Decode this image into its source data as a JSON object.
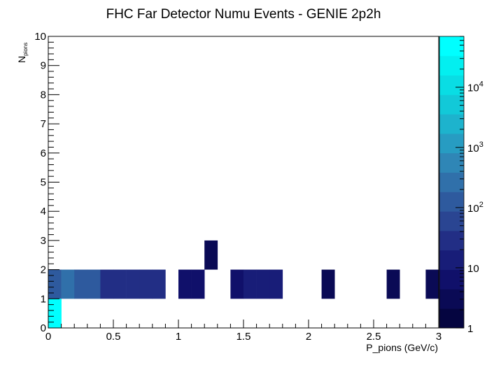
{
  "chart_data": {
    "type": "heatmap",
    "title": "FHC Far Detector Numu Events - GENIE 2p2h",
    "xlabel": "P_pions (GeV/c)",
    "ylabel": {
      "main": "N",
      "sub": "pions"
    },
    "xlim": [
      0,
      3
    ],
    "ylim": [
      0,
      10
    ],
    "x_ticks": [
      "0",
      "0.5",
      "1",
      "1.5",
      "2",
      "2.5",
      "3"
    ],
    "y_ticks": [
      "0",
      "1",
      "2",
      "3",
      "4",
      "5",
      "6",
      "7",
      "8",
      "9",
      "10"
    ],
    "x_bin_width": 0.1,
    "y_bin_width": 1,
    "grid": false,
    "colorbar": {
      "scale": "log",
      "range": [
        1,
        70000
      ],
      "tick_labels": [
        {
          "value": 1,
          "base": "1",
          "exp": ""
        },
        {
          "value": 10,
          "base": "10",
          "exp": ""
        },
        {
          "value": 100,
          "base": "10",
          "exp": "2"
        },
        {
          "value": 1000,
          "base": "10",
          "exp": "3"
        },
        {
          "value": 10000,
          "base": "10",
          "exp": "4"
        }
      ],
      "palette": [
        "#050540",
        "#0a0a55",
        "#10106a",
        "#181d78",
        "#222e85",
        "#2a4592",
        "#2e5a9e",
        "#3070aa",
        "#2f86b6",
        "#279cc2",
        "#1db3cd",
        "#12c9d8",
        "#09dde4",
        "#03eff0",
        "#00ffff"
      ]
    },
    "cells": [
      {
        "x": 0.0,
        "y": 0,
        "value": 60000
      },
      {
        "x": 0.0,
        "y": 1,
        "value": 120
      },
      {
        "x": 0.1,
        "y": 1,
        "value": 300
      },
      {
        "x": 0.2,
        "y": 1,
        "value": 180
      },
      {
        "x": 0.3,
        "y": 1,
        "value": 100
      },
      {
        "x": 0.4,
        "y": 1,
        "value": 40
      },
      {
        "x": 0.5,
        "y": 1,
        "value": 35
      },
      {
        "x": 0.6,
        "y": 1,
        "value": 35
      },
      {
        "x": 0.7,
        "y": 1,
        "value": 25
      },
      {
        "x": 0.8,
        "y": 1,
        "value": 20
      },
      {
        "x": 1.0,
        "y": 1,
        "value": 8
      },
      {
        "x": 1.1,
        "y": 1,
        "value": 5
      },
      {
        "x": 1.2,
        "y": 2,
        "value": 3
      },
      {
        "x": 1.4,
        "y": 1,
        "value": 5
      },
      {
        "x": 1.5,
        "y": 1,
        "value": 10
      },
      {
        "x": 1.6,
        "y": 1,
        "value": 10
      },
      {
        "x": 1.7,
        "y": 1,
        "value": 10
      },
      {
        "x": 2.1,
        "y": 1,
        "value": 4
      },
      {
        "x": 2.6,
        "y": 1,
        "value": 4
      },
      {
        "x": 2.9,
        "y": 1,
        "value": 4
      }
    ]
  }
}
